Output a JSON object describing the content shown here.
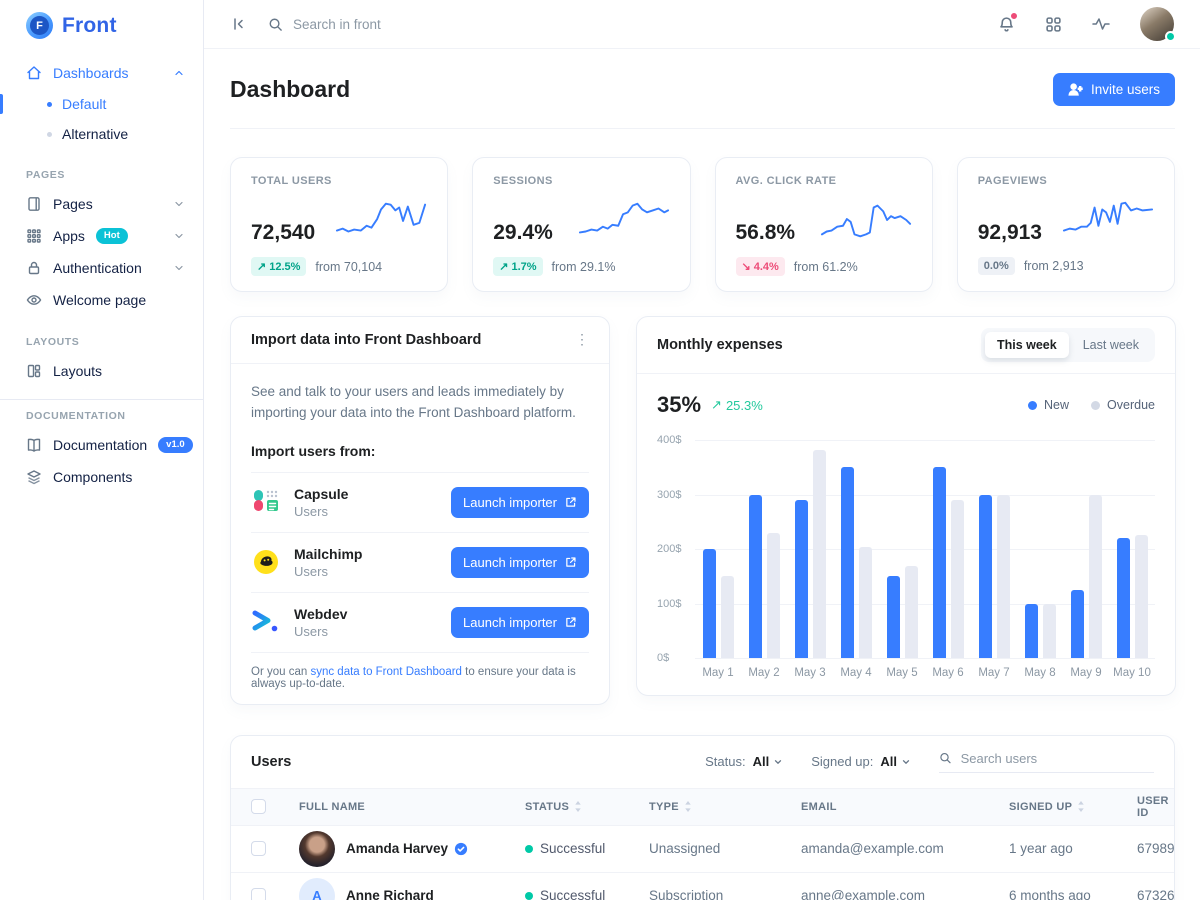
{
  "colors": {
    "primary": "#377dff",
    "success": "#00c9a7",
    "danger": "#ed4c78",
    "bar_new": "#377dff",
    "bar_overdue": "#e7eaf3"
  },
  "icons": {
    "trend_up": "↗",
    "trend_down": "↘",
    "ellipsis": "⋮"
  },
  "brand": {
    "name": "Front",
    "logo_letter": "F"
  },
  "topbar": {
    "search_placeholder": "Search in front"
  },
  "sidebar": {
    "dashboards": "Dashboards",
    "default": "Default",
    "alternative": "Alternative",
    "pages_header": "PAGES",
    "pages": "Pages",
    "apps": "Apps",
    "apps_badge": "Hot",
    "authentication": "Authentication",
    "welcome": "Welcome page",
    "layouts_header": "LAYOUTS",
    "layouts": "Layouts",
    "docs_header": "DOCUMENTATION",
    "documentation": "Documentation",
    "docs_badge": "v1.0",
    "components": "Components"
  },
  "header": {
    "title": "Dashboard",
    "invite_label": "Invite users"
  },
  "stats": [
    {
      "label": "TOTAL USERS",
      "value": "72,540",
      "delta": "12.5%",
      "direction": "up",
      "from": "from 70,104"
    },
    {
      "label": "SESSIONS",
      "value": "29.4%",
      "delta": "1.7%",
      "direction": "up",
      "from": "from 29.1%"
    },
    {
      "label": "AVG. CLICK RATE",
      "value": "56.8%",
      "delta": "4.4%",
      "direction": "down",
      "from": "from 61.2%"
    },
    {
      "label": "PAGEVIEWS",
      "value": "92,913",
      "delta": "0.0%",
      "direction": "flat",
      "from": "from 2,913"
    }
  ],
  "import_card": {
    "title": "Import data into Front Dashboard",
    "description": "See and talk to your users and leads immediately by importing your data into the Front Dashboard platform.",
    "subtitle": "Import users from:",
    "sources": [
      {
        "name": "Capsule",
        "type": "Users",
        "button": "Launch importer"
      },
      {
        "name": "Mailchimp",
        "type": "Users",
        "button": "Launch importer"
      },
      {
        "name": "Webdev",
        "type": "Users",
        "button": "Launch importer"
      }
    ],
    "footer_prefix": "Or you can ",
    "footer_link": "sync data to Front Dashboard",
    "footer_suffix": " to ensure your data is always up-to-date."
  },
  "expenses_card": {
    "title": "Monthly expenses",
    "toggle_active": "This week",
    "toggle_inactive": "Last week",
    "value": "35%",
    "delta": "25.3%",
    "legend_new": "New",
    "legend_overdue": "Overdue"
  },
  "chart_data": {
    "type": "bar",
    "title": "Monthly expenses",
    "categories": [
      "May 1",
      "May 2",
      "May 3",
      "May 4",
      "May 5",
      "May 6",
      "May 7",
      "May 8",
      "May 9",
      "May 10"
    ],
    "series": [
      {
        "name": "New",
        "color": "#377dff",
        "values": [
          200,
          300,
          290,
          350,
          150,
          350,
          300,
          100,
          125,
          220
        ]
      },
      {
        "name": "Overdue",
        "color": "#e7eaf3",
        "values": [
          150,
          230,
          382,
          204,
          169,
          290,
          300,
          100,
          300,
          225
        ]
      }
    ],
    "ylim": [
      0,
      400
    ],
    "yticks": [
      "400$",
      "300$",
      "200$",
      "100$",
      "0$"
    ],
    "grid": true,
    "legend_position": "top-right"
  },
  "users_card": {
    "title": "Users",
    "filters": {
      "status_label": "Status:",
      "status_value": "All",
      "signedup_label": "Signed up:",
      "signedup_value": "All",
      "search_placeholder": "Search users"
    },
    "columns": [
      "FULL NAME",
      "STATUS",
      "TYPE",
      "EMAIL",
      "SIGNED UP",
      "USER ID"
    ],
    "rows": [
      {
        "name": "Amanda Harvey",
        "verified": true,
        "status": "Successful",
        "type": "Unassigned",
        "email": "amanda@example.com",
        "signed_up": "1 year ago",
        "user_id": "67989",
        "avatar_initial": ""
      },
      {
        "name": "Anne Richard",
        "verified": false,
        "status": "Successful",
        "type": "Subscription",
        "email": "anne@example.com",
        "signed_up": "6 months ago",
        "user_id": "67326",
        "avatar_initial": "A"
      }
    ]
  }
}
